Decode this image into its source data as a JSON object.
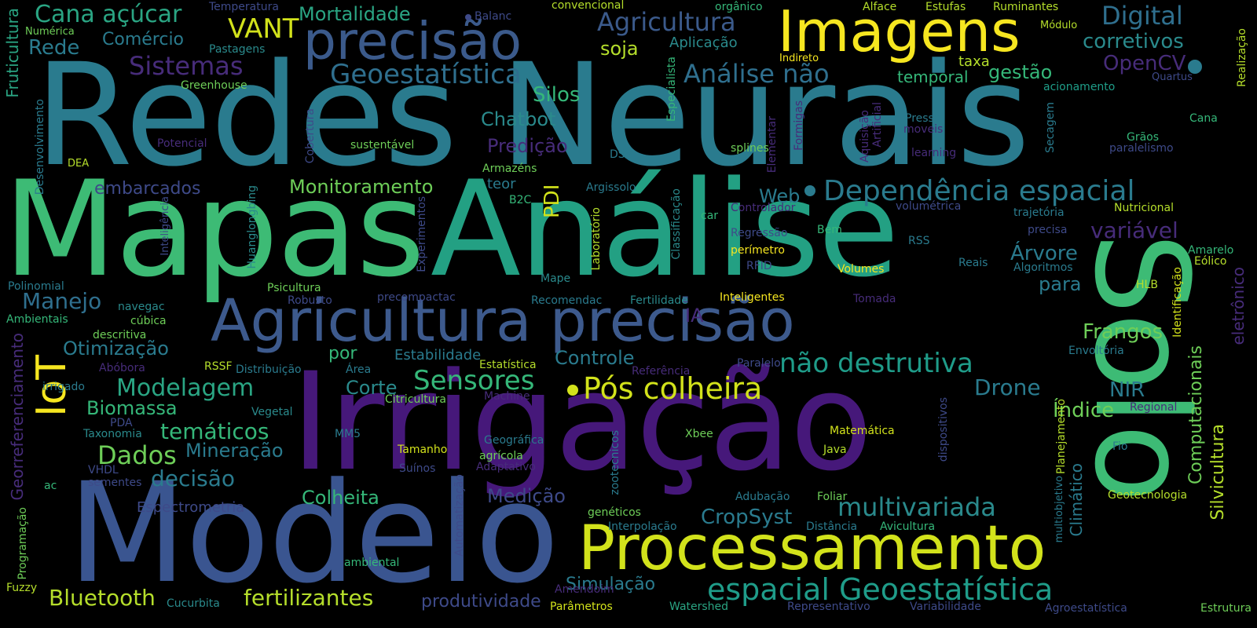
{
  "palette": {
    "background": "#000000",
    "purple": "#482878",
    "indigo": "#3e4a89",
    "blue": "#31688e",
    "teal": "#26828e",
    "green_teal": "#1f9e89",
    "green": "#35b779",
    "light_green": "#6ece58",
    "lime": "#b5de2b",
    "yellow": "#fde725"
  },
  "words": {
    "redes_neurais": "Redes Neurais",
    "mapas": "Mapas",
    "analise": "Análise",
    "irrigacao": "Irrigação",
    "modelo": "Modelo",
    "solo": "Solo",
    "processamento": "Processamento",
    "agricultura_precisao": "Agricultura precisão",
    "imagens": "Imagens",
    "precisao": "precisão",
    "espacial_geoestatistica": "espacial Geoestatística",
    "dependencia_espacial": "Dependência espacial",
    "pos_colheira": "Pós colheira",
    "nao_destrutiva": "não destrutiva",
    "iot": "IoT",
    "geoestatistica": "Geoestatística",
    "analise_nao": "Análise não",
    "digital": "Digital",
    "agricultura": "Agricultura",
    "sistemas": "Sistemas",
    "vant": "VANT",
    "cana_acucar": "Cana açúcar",
    "mortalidade": "Mortalidade",
    "comercio": "Comércio",
    "rede": "Rede",
    "corretivos": "corretivos",
    "opencv": "OpenCV",
    "gestao": "gestão",
    "temporal": "temporal",
    "soja": "soja",
    "silos": "Silos",
    "chatbot": "Chatbot",
    "predicao": "Predição",
    "monitoramento": "Monitoramento",
    "embarcados": "embarcados",
    "web": "Web",
    "variavel": "variável",
    "arvore": "Árvore",
    "manejo": "Manejo",
    "para": "para",
    "otimizacao": "Otimização",
    "controle": "Controle",
    "frangos": "Frangos",
    "modelagem": "Modelagem",
    "sensores": "Sensores",
    "corte": "Corte",
    "drone": "Drone",
    "nir": "NIR",
    "biomassa": "Biomassa",
    "tematicos": "temáticos",
    "indice": "Índice",
    "dados": "Dados",
    "mineracao": "Mineração",
    "decisao": "decisão",
    "colheita": "Colheita",
    "medicao": "Medição",
    "multivariada": "multivariada",
    "cropsyst": "CropSyst",
    "bluetooth": "Bluetooth",
    "fertilizantes": "fertilizantes",
    "simulacao": "Simulação",
    "produtividade": "produtividade",
    "computacionais": "Computacionais",
    "silvicultura": "Silvicultura",
    "climatico": "Climático",
    "eletronico": "eletrônico",
    "fruticultura": "Fruticultura",
    "georreferenciamento": "Georreferenciamento",
    "pdi": "PDI",
    "ia": "IA",
    "por": "por",
    "estabilidade": "Estabilidade",
    "espectrometria": "Espectrometria",
    "temperatura": "Temperatura",
    "numerica": "Numérica",
    "pastagens": "Pastagens",
    "greenhouse": "Greenhouse",
    "balanc": "Balanc",
    "convencional": "convencional",
    "organico": "orgânico",
    "alface": "Alface",
    "estufas": "Estufas",
    "ruminantes": "Ruminantes",
    "modulo": "Módulo",
    "realizacao": "Realização",
    "aplicacao": "Aplicação",
    "indireto": "Indireto",
    "taxa": "taxa",
    "acionamento": "acionamento",
    "quartus": "Quartus",
    "cana": "Cana",
    "graos": "Grãos",
    "secagem": "Secagem",
    "paralelismo": "paralelismo",
    "pressa": "Pressa",
    "moveis": "moveis",
    "learning": "learning",
    "sustentavel": "sustentável",
    "potencial": "Potencial",
    "dea": "DEA",
    "armazens": "Armazéns",
    "teor": "teor",
    "dss": "DSS",
    "splines": "splines",
    "argissolo": "Argissolo",
    "b2c": "B2C",
    "controlador": "Controlador",
    "volumetrica": "volumétrica",
    "trajetoria": "trajetória",
    "nutricional": "Nutricional",
    "precisa": "precisa",
    "car": "car",
    "regressao": "Regressão",
    "bem": "Bem",
    "rss": "RSS",
    "amarelo": "Amarelo",
    "eolico": "Eólico",
    "perimetro": "perímetro",
    "rfid": "RFID",
    "volumes": "Volumes",
    "reais": "Reais",
    "algoritmos": "Algoritmos",
    "hlb": "HLB",
    "polinomial": "Polinomial",
    "psicultura": "Psicultura",
    "mape": "Mape",
    "inteligentes": "Inteligentes",
    "tomada": "Tomada",
    "ambientais": "Ambientais",
    "navegac": "navegac",
    "robusto": "Robusto",
    "precompactac": "precompactac",
    "recomendac": "Recomendac",
    "fertilidade": "Fertilidade",
    "cubica": "cúbica",
    "descritiva": "descritiva",
    "abobora": "Abóbora",
    "referencia": "Referência",
    "envoltoria": "Envoltória",
    "rssf": "RSSF",
    "distribuicao": "Distribuição",
    "area": "Área",
    "estatistica": "Estatística",
    "paralelo": "Paralelo",
    "irrigado": "irrigado",
    "citricultura": "Citricultura",
    "machine": "Machine",
    "regional": "Regional",
    "pda": "PDA",
    "taxonomia": "Taxonomia",
    "vegetal": "Vegetal",
    "mm5": "MM5",
    "tamanho": "Tamanho",
    "geografica": "Geográfica",
    "xbee": "Xbee",
    "matematica": "Matemática",
    "agricola": "agrícola",
    "java": "Java",
    "fio": "Fio",
    "vhdl": "VHDL",
    "sementes": "sementes",
    "ac": "ac",
    "suinos": "Suínos",
    "adaptativo": "Adaptativo",
    "adubacao": "Adubação",
    "foliar": "Foliar",
    "geotecnologia": "Geotecnologia",
    "geneticos": "genéticos",
    "interpolacao": "Interpolação",
    "distancia": "Distância",
    "avicultura": "Avicultura",
    "ambiental": "ambiental",
    "fuzzy": "Fuzzy",
    "cucurbita": "Cucurbita",
    "amendoim": "Amendoim",
    "parametros": "Parâmetros",
    "watershed": "Watershed",
    "representativo": "Representativo",
    "variabilidade": "Variabilidade",
    "agroestatistica": "Agroestatística",
    "estrutura": "Estrutura",
    "desenvolvimento": "Desenvolvimento",
    "inteligencia": "Inteligência",
    "huanglongbing": "Huanglongbing",
    "experimentos": "Experimentos",
    "laboratorio": "Laboratório",
    "classificacao": "Classificação",
    "especialista": "Especialista",
    "cobertura": "Cobertura",
    "formigas": "Formigas",
    "elementar": "Elementar",
    "aquisicao": "Aquisição",
    "artificial": "Artificial",
    "identificacao": "Identificação",
    "planejamento": "Planejamento",
    "multiobjetivo": "multiobjetivo",
    "dispositivos": "dispositivos",
    "zootecnicos": "zootecnicos",
    "automatizacao": "Automatização",
    "programacao": "Programação"
  }
}
